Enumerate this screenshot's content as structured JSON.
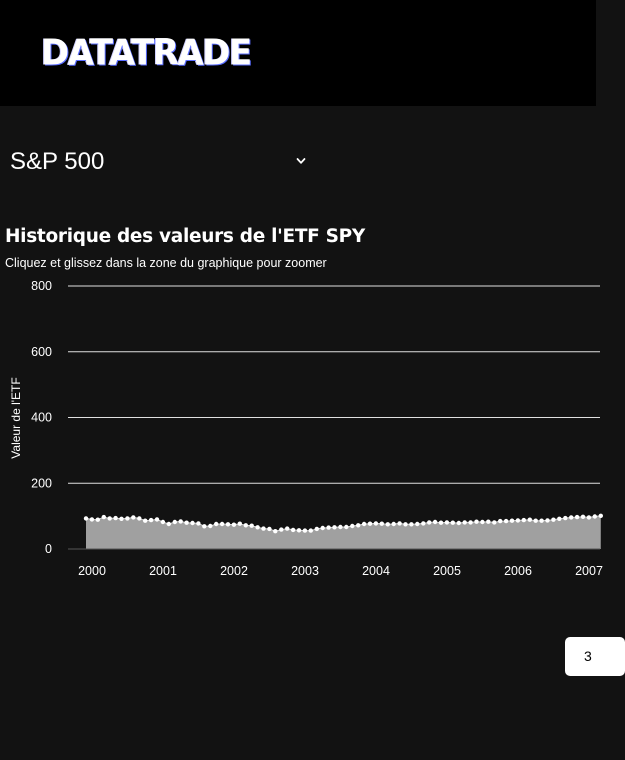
{
  "header": {
    "logo_text": "DATATRADE"
  },
  "selector": {
    "value": "S&P 500",
    "icon": "chevron-down-icon"
  },
  "chart_title": "Historique des valeurs de l'ETF SPY",
  "chart_subtitle": "Cliquez et glissez dans la zone du graphique pour zoomer",
  "pagination": {
    "label": "3"
  },
  "colors": {
    "background": "#121212",
    "header": "#000000",
    "area_fill": "#a0a0a0",
    "marker": "#ffffff",
    "grid": "#e0e0e0"
  },
  "chart_data": {
    "type": "area",
    "title": "",
    "xlabel": "",
    "ylabel": "Valeur de l'ETF",
    "ylim": [
      0,
      800
    ],
    "y_ticks": [
      0,
      200,
      400,
      600,
      800
    ],
    "x_ticks": [
      "2000",
      "2001",
      "2002",
      "2003",
      "2004",
      "2005",
      "2006",
      "2007"
    ],
    "grid": true,
    "legend": "none",
    "series": [
      {
        "x": [
          "2000-01",
          "2000-02",
          "2000-03",
          "2000-04",
          "2000-05",
          "2000-06",
          "2000-07",
          "2000-08",
          "2000-09",
          "2000-10",
          "2000-11",
          "2000-12",
          "2001-01",
          "2001-02",
          "2001-03",
          "2001-04",
          "2001-05",
          "2001-06",
          "2001-07",
          "2001-08",
          "2001-09",
          "2001-10",
          "2001-11",
          "2001-12",
          "2002-01",
          "2002-02",
          "2002-03",
          "2002-04",
          "2002-05",
          "2002-06",
          "2002-07",
          "2002-08",
          "2002-09",
          "2002-10",
          "2002-11",
          "2002-12",
          "2003-01",
          "2003-02",
          "2003-03",
          "2003-04",
          "2003-05",
          "2003-06",
          "2003-07",
          "2003-08",
          "2003-09",
          "2003-10",
          "2003-11",
          "2003-12",
          "2004-01",
          "2004-02",
          "2004-03",
          "2004-04",
          "2004-05",
          "2004-06",
          "2004-07",
          "2004-08",
          "2004-09",
          "2004-10",
          "2004-11",
          "2004-12",
          "2005-01",
          "2005-02",
          "2005-03",
          "2005-04",
          "2005-05",
          "2005-06",
          "2005-07",
          "2005-08",
          "2005-09",
          "2005-10",
          "2005-11",
          "2005-12",
          "2006-01",
          "2006-02",
          "2006-03",
          "2006-04",
          "2006-05",
          "2006-06",
          "2006-07",
          "2006-08",
          "2006-09",
          "2006-10",
          "2006-11",
          "2006-12",
          "2007-01",
          "2007-02",
          "2007-03",
          "2007-04"
        ],
        "values": [
          93,
          90,
          89,
          97,
          93,
          94,
          92,
          93,
          96,
          93,
          86,
          88,
          90,
          82,
          76,
          82,
          84,
          80,
          79,
          78,
          69,
          70,
          76,
          76,
          75,
          74,
          77,
          72,
          71,
          66,
          62,
          61,
          54,
          59,
          62,
          58,
          57,
          56,
          56,
          61,
          64,
          65,
          66,
          67,
          67,
          70,
          72,
          76,
          77,
          78,
          77,
          75,
          76,
          78,
          75,
          75,
          76,
          78,
          81,
          82,
          80,
          81,
          80,
          79,
          81,
          81,
          83,
          82,
          83,
          81,
          85,
          85,
          86,
          87,
          88,
          89,
          86,
          86,
          87,
          89,
          92,
          94,
          96,
          97,
          98,
          96,
          99,
          101
        ]
      }
    ]
  }
}
